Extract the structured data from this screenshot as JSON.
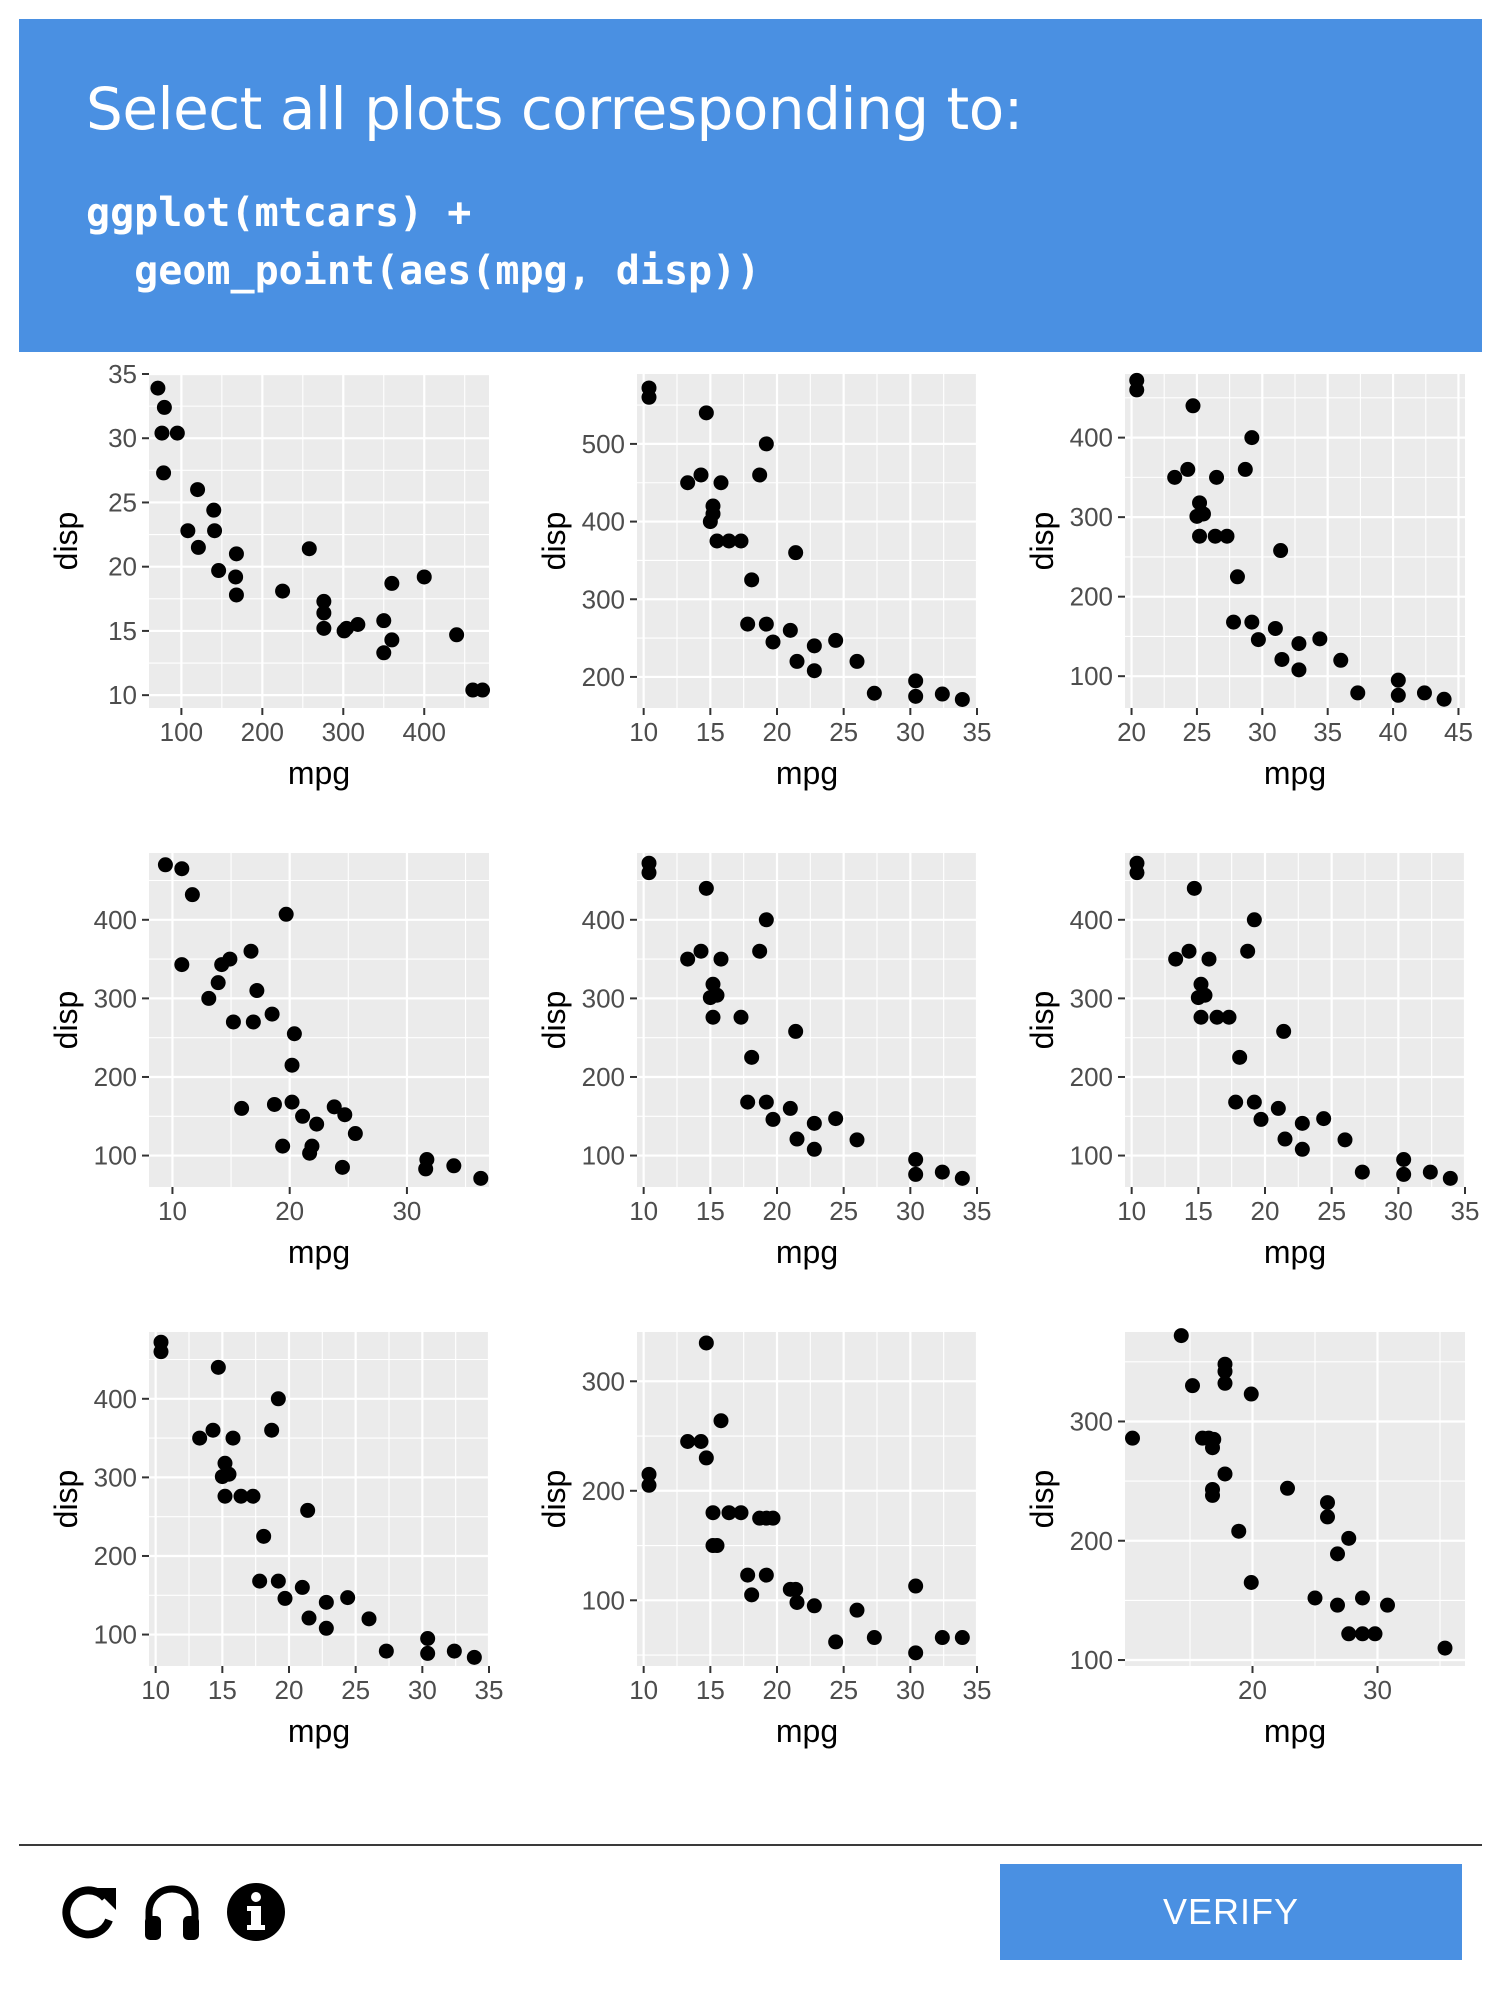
{
  "header": {
    "prompt": "Select all plots corresponding to:",
    "code": "ggplot(mtcars) +\n  geom_point(aes(mpg, disp))"
  },
  "footer": {
    "verify_label": "VERIFY",
    "icons": [
      "reload-icon",
      "audio-icon",
      "info-icon"
    ]
  },
  "colors": {
    "accent": "#4a90e2",
    "panel": "#ebebeb",
    "point": "#000000"
  },
  "plots": [
    {
      "xlabel": "mpg",
      "ylabel": "disp",
      "xlim": [
        60,
        480
      ],
      "ylim": [
        9,
        35
      ],
      "xticks": [
        100,
        200,
        300,
        400
      ],
      "yticks": [
        10,
        15,
        20,
        25,
        30,
        35
      ],
      "points": [
        [
          71,
          33.9
        ],
        [
          79,
          32.4
        ],
        [
          76,
          30.4
        ],
        [
          95,
          30.4
        ],
        [
          78,
          27.3
        ],
        [
          120,
          26
        ],
        [
          140,
          24.4
        ],
        [
          258,
          21.4
        ],
        [
          108,
          22.8
        ],
        [
          141,
          22.8
        ],
        [
          121,
          21.5
        ],
        [
          168,
          21
        ],
        [
          146,
          19.7
        ],
        [
          167,
          19.2
        ],
        [
          400,
          19.2
        ],
        [
          360,
          18.7
        ],
        [
          225,
          18.1
        ],
        [
          168,
          17.8
        ],
        [
          276,
          17.3
        ],
        [
          276,
          16.4
        ],
        [
          318,
          15.5
        ],
        [
          304,
          15.2
        ],
        [
          276,
          15.2
        ],
        [
          350,
          15.8
        ],
        [
          301,
          15
        ],
        [
          440,
          14.7
        ],
        [
          360,
          14.3
        ],
        [
          350,
          13.3
        ],
        [
          460,
          10.4
        ],
        [
          472,
          10.4
        ]
      ]
    },
    {
      "xlabel": "mpg",
      "ylabel": "disp",
      "xlim": [
        9.5,
        35
      ],
      "ylim": [
        160,
        590
      ],
      "xticks": [
        10,
        15,
        20,
        25,
        30,
        35
      ],
      "yticks": [
        200,
        300,
        400,
        500
      ],
      "points": [
        [
          10.4,
          572
        ],
        [
          10.4,
          560
        ],
        [
          14.7,
          540
        ],
        [
          19.2,
          500
        ],
        [
          13.3,
          450
        ],
        [
          14.3,
          460
        ],
        [
          15.2,
          420
        ],
        [
          15.8,
          450
        ],
        [
          18.7,
          460
        ],
        [
          15.0,
          400
        ],
        [
          15.2,
          410
        ],
        [
          15.5,
          375
        ],
        [
          16.4,
          375
        ],
        [
          17.3,
          375
        ],
        [
          21.4,
          360
        ],
        [
          18.1,
          325
        ],
        [
          17.8,
          268
        ],
        [
          19.2,
          268
        ],
        [
          19.7,
          245
        ],
        [
          21.0,
          260
        ],
        [
          21.5,
          220
        ],
        [
          22.8,
          240
        ],
        [
          22.8,
          208
        ],
        [
          24.4,
          247
        ],
        [
          26.0,
          220
        ],
        [
          27.3,
          179
        ],
        [
          30.4,
          195
        ],
        [
          30.4,
          175
        ],
        [
          32.4,
          178
        ],
        [
          33.9,
          171
        ]
      ]
    },
    {
      "xlabel": "mpg",
      "ylabel": "disp",
      "xlim": [
        19.5,
        45.5
      ],
      "ylim": [
        60,
        480
      ],
      "xticks": [
        20,
        25,
        30,
        35,
        40,
        45
      ],
      "yticks": [
        100,
        200,
        300,
        400
      ],
      "points": [
        [
          20.4,
          472
        ],
        [
          20.4,
          460
        ],
        [
          24.7,
          440
        ],
        [
          29.2,
          400
        ],
        [
          23.3,
          350
        ],
        [
          24.3,
          360
        ],
        [
          26.5,
          350
        ],
        [
          28.7,
          360
        ],
        [
          25.2,
          318
        ],
        [
          25.0,
          301
        ],
        [
          25.5,
          304
        ],
        [
          25.2,
          276
        ],
        [
          26.4,
          276
        ],
        [
          27.3,
          276
        ],
        [
          31.4,
          258
        ],
        [
          28.1,
          225
        ],
        [
          27.8,
          168
        ],
        [
          29.2,
          168
        ],
        [
          29.7,
          146
        ],
        [
          31.0,
          160
        ],
        [
          31.5,
          121
        ],
        [
          32.8,
          141
        ],
        [
          32.8,
          108
        ],
        [
          34.4,
          147
        ],
        [
          36.0,
          120
        ],
        [
          37.3,
          79
        ],
        [
          40.4,
          95
        ],
        [
          40.4,
          76
        ],
        [
          42.4,
          79
        ],
        [
          43.9,
          71
        ]
      ]
    },
    {
      "xlabel": "mpg",
      "ylabel": "disp",
      "xlim": [
        8,
        37
      ],
      "ylim": [
        60,
        485
      ],
      "xticks": [
        10,
        20,
        30
      ],
      "yticks": [
        100,
        200,
        300,
        400
      ],
      "points": [
        [
          9.4,
          470
        ],
        [
          10.8,
          465
        ],
        [
          11.7,
          432
        ],
        [
          19.7,
          407
        ],
        [
          10.8,
          343
        ],
        [
          13.1,
          300
        ],
        [
          13.9,
          320
        ],
        [
          14.2,
          343
        ],
        [
          14.9,
          350
        ],
        [
          16.7,
          360
        ],
        [
          17.2,
          310
        ],
        [
          18.5,
          280
        ],
        [
          15.2,
          270
        ],
        [
          16.9,
          270
        ],
        [
          20.4,
          255
        ],
        [
          20.2,
          215
        ],
        [
          15.9,
          160
        ],
        [
          18.7,
          165
        ],
        [
          20.2,
          168
        ],
        [
          21.1,
          150
        ],
        [
          19.4,
          112
        ],
        [
          22.3,
          140
        ],
        [
          21.7,
          103
        ],
        [
          21.9,
          112
        ],
        [
          23.8,
          162
        ],
        [
          24.7,
          152
        ],
        [
          25.6,
          128
        ],
        [
          24.5,
          85
        ],
        [
          31.7,
          95
        ],
        [
          31.6,
          83
        ],
        [
          34.0,
          87
        ],
        [
          36.3,
          71
        ]
      ]
    },
    {
      "xlabel": "mpg",
      "ylabel": "disp",
      "xlim": [
        9.5,
        35
      ],
      "ylim": [
        60,
        485
      ],
      "xticks": [
        10,
        15,
        20,
        25,
        30,
        35
      ],
      "yticks": [
        100,
        200,
        300,
        400
      ],
      "points": [
        [
          10.4,
          472
        ],
        [
          10.4,
          460
        ],
        [
          14.7,
          440
        ],
        [
          19.2,
          400
        ],
        [
          13.3,
          350
        ],
        [
          14.3,
          360
        ],
        [
          15.8,
          350
        ],
        [
          18.7,
          360
        ],
        [
          15.2,
          318
        ],
        [
          15.0,
          301
        ],
        [
          15.5,
          304
        ],
        [
          15.2,
          276
        ],
        [
          17.3,
          276
        ],
        [
          21.4,
          258
        ],
        [
          18.1,
          225
        ],
        [
          17.8,
          168
        ],
        [
          19.2,
          168
        ],
        [
          19.7,
          146
        ],
        [
          21.0,
          160
        ],
        [
          21.5,
          121
        ],
        [
          22.8,
          141
        ],
        [
          22.8,
          108
        ],
        [
          24.4,
          147
        ],
        [
          26.0,
          120
        ],
        [
          30.4,
          95
        ],
        [
          30.4,
          76
        ],
        [
          32.4,
          79
        ],
        [
          33.9,
          71
        ]
      ]
    },
    {
      "xlabel": "mpg",
      "ylabel": "disp",
      "xlim": [
        9.5,
        35
      ],
      "ylim": [
        60,
        485
      ],
      "xticks": [
        10,
        15,
        20,
        25,
        30,
        35
      ],
      "yticks": [
        100,
        200,
        300,
        400
      ],
      "points": [
        [
          10.4,
          472
        ],
        [
          10.4,
          460
        ],
        [
          14.7,
          440
        ],
        [
          19.2,
          400
        ],
        [
          13.3,
          350
        ],
        [
          14.3,
          360
        ],
        [
          15.8,
          350
        ],
        [
          18.7,
          360
        ],
        [
          15.2,
          318
        ],
        [
          15.0,
          301
        ],
        [
          15.5,
          304
        ],
        [
          15.2,
          276
        ],
        [
          16.4,
          276
        ],
        [
          17.3,
          276
        ],
        [
          21.4,
          258
        ],
        [
          18.1,
          225
        ],
        [
          17.8,
          168
        ],
        [
          19.2,
          168
        ],
        [
          19.7,
          146
        ],
        [
          21.0,
          160
        ],
        [
          21.5,
          121
        ],
        [
          22.8,
          141
        ],
        [
          22.8,
          108
        ],
        [
          24.4,
          147
        ],
        [
          26.0,
          120
        ],
        [
          27.3,
          79
        ],
        [
          30.4,
          95
        ],
        [
          30.4,
          76
        ],
        [
          32.4,
          79
        ],
        [
          33.9,
          71
        ]
      ]
    },
    {
      "xlabel": "mpg",
      "ylabel": "disp",
      "xlim": [
        9.5,
        35
      ],
      "ylim": [
        60,
        485
      ],
      "xticks": [
        10,
        15,
        20,
        25,
        30,
        35
      ],
      "yticks": [
        100,
        200,
        300,
        400
      ],
      "points": [
        [
          10.4,
          472
        ],
        [
          10.4,
          460
        ],
        [
          14.7,
          440
        ],
        [
          19.2,
          400
        ],
        [
          13.3,
          350
        ],
        [
          14.3,
          360
        ],
        [
          15.8,
          350
        ],
        [
          18.7,
          360
        ],
        [
          15.2,
          318
        ],
        [
          15.0,
          301
        ],
        [
          15.5,
          304
        ],
        [
          15.2,
          276
        ],
        [
          16.4,
          276
        ],
        [
          17.3,
          276
        ],
        [
          21.4,
          258
        ],
        [
          18.1,
          225
        ],
        [
          17.8,
          168
        ],
        [
          19.2,
          168
        ],
        [
          19.7,
          146
        ],
        [
          21.0,
          160
        ],
        [
          21.5,
          121
        ],
        [
          22.8,
          141
        ],
        [
          22.8,
          108
        ],
        [
          24.4,
          147
        ],
        [
          26.0,
          120
        ],
        [
          27.3,
          79
        ],
        [
          30.4,
          95
        ],
        [
          30.4,
          76
        ],
        [
          32.4,
          79
        ],
        [
          33.9,
          71
        ]
      ]
    },
    {
      "xlabel": "mpg",
      "ylabel": "disp",
      "xlim": [
        9.5,
        35
      ],
      "ylim": [
        40,
        345
      ],
      "xticks": [
        10,
        15,
        20,
        25,
        30,
        35
      ],
      "yticks": [
        100,
        200,
        300
      ],
      "points": [
        [
          10.4,
          215
        ],
        [
          10.4,
          205
        ],
        [
          14.7,
          335
        ],
        [
          15.8,
          264
        ],
        [
          13.3,
          245
        ],
        [
          14.3,
          245
        ],
        [
          14.7,
          230
        ],
        [
          15.2,
          180
        ],
        [
          16.4,
          180
        ],
        [
          17.3,
          180
        ],
        [
          18.7,
          175
        ],
        [
          19.2,
          175
        ],
        [
          19.7,
          175
        ],
        [
          15.2,
          150
        ],
        [
          15.5,
          150
        ],
        [
          17.8,
          123
        ],
        [
          19.2,
          123
        ],
        [
          18.1,
          105
        ],
        [
          21.0,
          110
        ],
        [
          21.4,
          110
        ],
        [
          21.5,
          98
        ],
        [
          22.8,
          95
        ],
        [
          24.4,
          62
        ],
        [
          26.0,
          91
        ],
        [
          27.3,
          66
        ],
        [
          30.4,
          113
        ],
        [
          30.4,
          52
        ],
        [
          32.4,
          66
        ],
        [
          33.9,
          66
        ]
      ]
    },
    {
      "xlabel": "mpg",
      "ylabel": "disp",
      "xlim": [
        9.8,
        37
      ],
      "ylim": [
        95,
        375
      ],
      "xticks": [
        20,
        30
      ],
      "yticks": [
        100,
        200,
        300
      ],
      "points": [
        [
          10.4,
          286
        ],
        [
          14.3,
          372
        ],
        [
          15.2,
          330
        ],
        [
          16.0,
          286
        ],
        [
          16.5,
          286
        ],
        [
          16.9,
          285
        ],
        [
          16.8,
          278
        ],
        [
          16.8,
          243
        ],
        [
          16.8,
          238
        ],
        [
          17.8,
          348
        ],
        [
          17.8,
          342
        ],
        [
          17.8,
          332
        ],
        [
          17.8,
          256
        ],
        [
          18.9,
          208
        ],
        [
          19.9,
          323
        ],
        [
          19.9,
          165
        ],
        [
          22.8,
          244
        ],
        [
          25.0,
          152
        ],
        [
          26.0,
          232
        ],
        [
          26.0,
          220
        ],
        [
          26.8,
          189
        ],
        [
          26.8,
          146
        ],
        [
          27.7,
          202
        ],
        [
          27.7,
          122
        ],
        [
          28.8,
          152
        ],
        [
          28.8,
          122
        ],
        [
          29.8,
          122
        ],
        [
          30.8,
          146
        ],
        [
          35.4,
          110
        ]
      ]
    }
  ]
}
